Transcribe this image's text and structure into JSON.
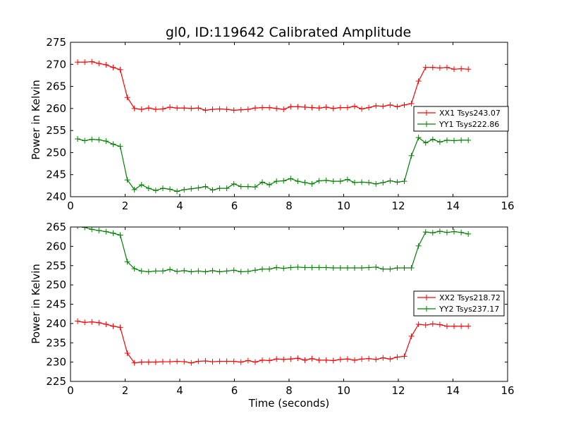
{
  "title": "gl0, ID:119642 Calibrated Amplitude",
  "chart_data": [
    {
      "type": "line",
      "title": "gl0, ID:119642 Calibrated Amplitude",
      "xlabel": "",
      "ylabel": "Power in Kelvin",
      "xlim": [
        0,
        16
      ],
      "ylim": [
        240,
        275
      ],
      "xticks": [
        "0",
        "2",
        "4",
        "6",
        "8",
        "10",
        "12",
        "14",
        "16"
      ],
      "yticks": [
        "240",
        "245",
        "250",
        "255",
        "260",
        "265",
        "270",
        "275"
      ],
      "grid": false,
      "legend_position": "center-right",
      "x": [
        0.26,
        0.52,
        0.78,
        1.04,
        1.3,
        1.56,
        1.82,
        2.08,
        2.34,
        2.6,
        2.86,
        3.12,
        3.38,
        3.64,
        3.9,
        4.16,
        4.42,
        4.68,
        4.94,
        5.2,
        5.46,
        5.72,
        5.98,
        6.24,
        6.5,
        6.76,
        7.02,
        7.28,
        7.54,
        7.8,
        8.06,
        8.32,
        8.58,
        8.84,
        9.1,
        9.36,
        9.62,
        9.88,
        10.14,
        10.4,
        10.66,
        10.92,
        11.18,
        11.44,
        11.7,
        11.96,
        12.22,
        12.48,
        12.74,
        13.0,
        13.26,
        13.52,
        13.78,
        14.04,
        14.3,
        14.56
      ],
      "series": [
        {
          "name": "XX1 Tsys243.07",
          "color": "#ff0000",
          "values": [
            270.5,
            270.5,
            270.6,
            270.2,
            269.9,
            269.3,
            268.8,
            262.5,
            260.0,
            259.8,
            260.1,
            259.8,
            259.9,
            260.3,
            260.1,
            260.1,
            260.0,
            260.1,
            259.6,
            259.8,
            259.9,
            259.8,
            259.6,
            259.7,
            259.8,
            260.1,
            260.2,
            260.2,
            260.0,
            259.8,
            260.4,
            260.4,
            260.3,
            260.2,
            260.1,
            260.3,
            260.0,
            260.2,
            260.2,
            260.5,
            259.9,
            260.2,
            260.6,
            260.5,
            260.8,
            260.4,
            260.8,
            261.1,
            266.2,
            269.3,
            269.3,
            269.2,
            269.3,
            268.9,
            269.0,
            268.9
          ]
        },
        {
          "name": "YY1 Tsys222.86",
          "color": "#008000",
          "values": [
            253.1,
            252.7,
            253.0,
            252.9,
            252.6,
            251.9,
            251.4,
            243.8,
            241.6,
            242.7,
            241.9,
            241.4,
            241.9,
            241.7,
            241.2,
            241.6,
            241.8,
            242.0,
            242.3,
            241.5,
            241.9,
            241.9,
            242.9,
            242.3,
            242.3,
            242.2,
            243.3,
            242.7,
            243.5,
            243.6,
            244.1,
            243.5,
            243.2,
            242.9,
            243.6,
            243.7,
            243.5,
            243.5,
            243.9,
            243.2,
            243.3,
            243.2,
            242.9,
            243.2,
            243.6,
            243.3,
            243.5,
            249.3,
            253.4,
            252.2,
            253.0,
            252.4,
            252.8,
            252.7,
            252.8,
            252.8
          ]
        }
      ]
    },
    {
      "type": "line",
      "title": "",
      "xlabel": "Time (seconds)",
      "ylabel": "Power in Kelvin",
      "xlim": [
        0,
        16
      ],
      "ylim": [
        225,
        265
      ],
      "xticks": [
        "0",
        "2",
        "4",
        "6",
        "8",
        "10",
        "12",
        "14",
        "16"
      ],
      "yticks": [
        "225",
        "230",
        "235",
        "240",
        "245",
        "250",
        "255",
        "260",
        "265"
      ],
      "grid": false,
      "legend_position": "center-right",
      "x": [
        0.26,
        0.52,
        0.78,
        1.04,
        1.3,
        1.56,
        1.82,
        2.08,
        2.34,
        2.6,
        2.86,
        3.12,
        3.38,
        3.64,
        3.9,
        4.16,
        4.42,
        4.68,
        4.94,
        5.2,
        5.46,
        5.72,
        5.98,
        6.24,
        6.5,
        6.76,
        7.02,
        7.28,
        7.54,
        7.8,
        8.06,
        8.32,
        8.58,
        8.84,
        9.1,
        9.36,
        9.62,
        9.88,
        10.14,
        10.4,
        10.66,
        10.92,
        11.18,
        11.44,
        11.7,
        11.96,
        12.22,
        12.48,
        12.74,
        13.0,
        13.26,
        13.52,
        13.78,
        14.04,
        14.3,
        14.56
      ],
      "series": [
        {
          "name": "XX2 Tsys218.72",
          "color": "#ff0000",
          "values": [
            240.6,
            240.3,
            240.4,
            240.2,
            239.8,
            239.3,
            239.0,
            232.3,
            229.8,
            230.0,
            230.0,
            230.0,
            230.1,
            230.1,
            230.2,
            230.1,
            229.8,
            230.2,
            230.3,
            230.1,
            230.2,
            230.2,
            230.2,
            230.0,
            230.4,
            230.0,
            230.5,
            230.4,
            230.8,
            230.7,
            230.8,
            231.0,
            230.5,
            230.9,
            230.5,
            230.5,
            230.4,
            230.7,
            230.8,
            230.5,
            230.8,
            230.9,
            230.7,
            231.1,
            230.8,
            231.3,
            231.5,
            236.7,
            239.8,
            239.6,
            239.9,
            239.7,
            239.3,
            239.3,
            239.3,
            239.3
          ]
        },
        {
          "name": "YY2 Tsys237.17",
          "color": "#008000",
          "values": [
            265.2,
            264.9,
            264.4,
            264.1,
            263.8,
            263.4,
            262.9,
            256.0,
            254.2,
            253.6,
            253.4,
            253.6,
            253.6,
            254.0,
            253.5,
            253.7,
            253.4,
            253.6,
            253.4,
            253.7,
            253.4,
            253.6,
            253.8,
            253.4,
            253.5,
            253.8,
            254.1,
            254.1,
            254.5,
            254.3,
            254.5,
            254.6,
            254.5,
            254.5,
            254.5,
            254.5,
            254.4,
            254.4,
            254.4,
            254.4,
            254.4,
            254.5,
            254.6,
            254.1,
            254.1,
            254.4,
            254.4,
            254.4,
            260.1,
            263.7,
            263.5,
            263.9,
            263.6,
            263.8,
            263.6,
            263.2
          ]
        }
      ]
    }
  ]
}
